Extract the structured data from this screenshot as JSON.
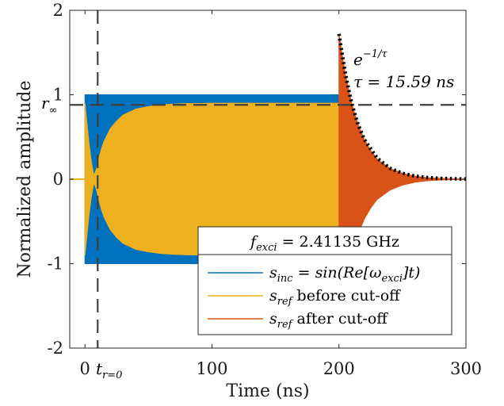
{
  "chart_data": {
    "type": "line",
    "xlabel": "Time (ns)",
    "ylabel": "Normalized amplitude",
    "xlim": [
      -12,
      300
    ],
    "ylim": [
      -2,
      2
    ],
    "xticks": [
      0,
      100,
      200,
      300
    ],
    "yticks": [
      -2,
      -1,
      0,
      1,
      2
    ],
    "tick_labels_x": [
      "0",
      "100",
      "200",
      "300"
    ],
    "tick_labels_y": [
      "-2",
      "-1",
      "0",
      "1",
      "2"
    ],
    "grid": false,
    "legend_position": "bottom-right",
    "legend_title": "f_exci = 2.41135 GHz",
    "series": [
      {
        "name": "s_inc = sin(Re[ω_exci]t)",
        "color": "#0072BD",
        "x": [
          -12,
          0,
          0,
          200,
          200,
          300
        ],
        "y_upper": [
          0,
          0,
          1,
          1,
          0,
          0
        ],
        "y_lower": [
          0,
          0,
          -1,
          -1,
          0,
          0
        ]
      },
      {
        "name": "s_ref before cut-off",
        "color": "#EDB120",
        "x": [
          0,
          1,
          3,
          5,
          7,
          9,
          11,
          13,
          15,
          20,
          25,
          30,
          40,
          50,
          60,
          70,
          80,
          100,
          130,
          160,
          200
        ],
        "y_upper": [
          0.9,
          0.75,
          0.45,
          0.21,
          0.04,
          0.12,
          0.25,
          0.36,
          0.45,
          0.6,
          0.69,
          0.76,
          0.83,
          0.86,
          0.88,
          0.89,
          0.895,
          0.9,
          0.9,
          0.9,
          0.9
        ]
      },
      {
        "name": "s_ref after cut-off",
        "color": "#D95319",
        "x": [
          200,
          205,
          210,
          215,
          220,
          225,
          230,
          240,
          250,
          260,
          270,
          280,
          290,
          300
        ],
        "y_upper": [
          1.72,
          1.24,
          0.9,
          0.65,
          0.47,
          0.34,
          0.24,
          0.13,
          0.07,
          0.035,
          0.018,
          0.009,
          0.005,
          0.002
        ]
      },
      {
        "name": "e^{-1/τ}",
        "color": "#000000",
        "style": "dotted",
        "x": [
          200,
          205,
          210,
          215,
          220,
          230,
          240,
          250,
          260,
          270,
          280,
          290,
          300
        ],
        "y": [
          1.72,
          1.25,
          0.9,
          0.65,
          0.47,
          0.25,
          0.13,
          0.07,
          0.036,
          0.019,
          0.01,
          0.005,
          0.003
        ]
      }
    ],
    "reference_lines": [
      {
        "orientation": "vertical",
        "x": 10,
        "label": "t_{r=0}",
        "style": "dashed"
      },
      {
        "orientation": "horizontal",
        "y": 0.88,
        "label": "r_∞",
        "style": "dashed"
      }
    ],
    "annotations": {
      "decay_formula": "e^{-1/τ}",
      "tau": "τ = 15.59 ns"
    }
  },
  "text": {
    "x_axis_label": "Time (ns)",
    "y_axis_label": "Normalized amplitude",
    "r_inf_base": "r",
    "r_inf_sub": "∞",
    "t_r0_base": "t",
    "t_r0_sub": "r=0",
    "exp_base": "e",
    "exp_sup": "−1/τ",
    "tau_text": "τ = 15.59 ns",
    "legend_title_f": "f",
    "legend_title_sub": "exci",
    "legend_title_rest": " = 2.41135 GHz",
    "legend_1_s": "s",
    "legend_1_sub": "inc",
    "legend_1_rest": " = sin(Re[ω",
    "legend_1_sub2": "exci",
    "legend_1_end": "]t)",
    "legend_2_s": "s",
    "legend_2_sub": "ref",
    "legend_2_rest": " before cut-off",
    "legend_3_s": "s",
    "legend_3_sub": "ref",
    "legend_3_rest": " after cut-off"
  }
}
